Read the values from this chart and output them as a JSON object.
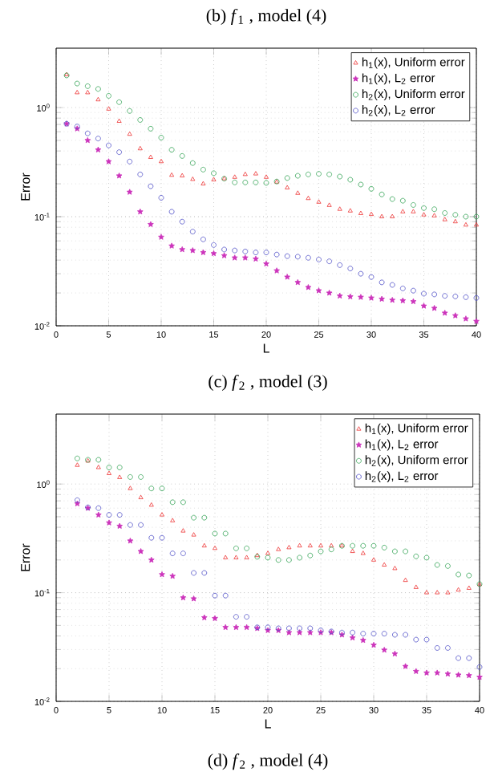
{
  "chart_data": [
    {
      "type": "scatter",
      "title": "(b)  *f*$_{1}$ , model (4)",
      "xlabel": "L",
      "ylabel": "Error",
      "x": [
        1,
        2,
        3,
        4,
        5,
        6,
        7,
        8,
        9,
        10,
        11,
        12,
        13,
        14,
        15,
        16,
        17,
        18,
        19,
        20,
        21,
        22,
        23,
        24,
        25,
        26,
        27,
        28,
        29,
        30,
        31,
        32,
        33,
        34,
        35,
        36,
        37,
        38,
        39,
        40
      ],
      "series": [
        {
          "name": "h$_{1}$(x), Uniform error",
          "color": "#ee3333",
          "marker": "triangle",
          "values": [
            2.0,
            1.37,
            1.37,
            1.18,
            0.97,
            0.75,
            0.57,
            0.42,
            0.35,
            0.32,
            0.24,
            0.237,
            0.22,
            0.2,
            0.218,
            0.223,
            0.23,
            0.244,
            0.247,
            0.23,
            0.208,
            0.184,
            0.164,
            0.147,
            0.136,
            0.127,
            0.117,
            0.113,
            0.107,
            0.105,
            0.1,
            0.1,
            0.111,
            0.111,
            0.104,
            0.102,
            0.094,
            0.09,
            0.084,
            0.084
          ]
        },
        {
          "name": "h$_{1}$(x), L$_{2}$ error",
          "color": "#cc33bb",
          "marker": "star",
          "values": [
            0.71,
            0.64,
            0.5,
            0.41,
            0.32,
            0.237,
            0.168,
            0.111,
            0.085,
            0.065,
            0.054,
            0.05,
            0.049,
            0.047,
            0.046,
            0.044,
            0.042,
            0.042,
            0.041,
            0.037,
            0.032,
            0.028,
            0.025,
            0.0225,
            0.021,
            0.02,
            0.0188,
            0.0185,
            0.0183,
            0.018,
            0.0176,
            0.0172,
            0.017,
            0.0167,
            0.0152,
            0.0145,
            0.0131,
            0.0124,
            0.0116,
            0.011
          ]
        },
        {
          "name": "h$_{2}$(x), Uniform error",
          "color": "#33a355",
          "marker": "circle",
          "values": [
            1.97,
            1.66,
            1.57,
            1.48,
            1.28,
            1.12,
            0.93,
            0.77,
            0.64,
            0.53,
            0.41,
            0.36,
            0.31,
            0.27,
            0.25,
            0.223,
            0.206,
            0.206,
            0.206,
            0.204,
            0.21,
            0.226,
            0.237,
            0.244,
            0.247,
            0.244,
            0.233,
            0.218,
            0.197,
            0.18,
            0.16,
            0.145,
            0.14,
            0.128,
            0.12,
            0.117,
            0.108,
            0.104,
            0.1,
            0.1
          ]
        },
        {
          "name": "h$_{2}$(x), L$_{2}$ error",
          "color": "#5050c8",
          "marker": "circle",
          "values": [
            0.71,
            0.67,
            0.58,
            0.52,
            0.45,
            0.39,
            0.32,
            0.244,
            0.19,
            0.149,
            0.111,
            0.09,
            0.073,
            0.062,
            0.055,
            0.05,
            0.049,
            0.048,
            0.047,
            0.047,
            0.045,
            0.0435,
            0.043,
            0.042,
            0.0405,
            0.039,
            0.036,
            0.0335,
            0.03,
            0.028,
            0.025,
            0.0237,
            0.022,
            0.021,
            0.0197,
            0.0194,
            0.0188,
            0.0186,
            0.0183,
            0.018
          ]
        }
      ],
      "xlim": [
        0,
        40
      ],
      "ylim": [
        0.01,
        3.5
      ],
      "xticks": [
        0,
        5,
        10,
        15,
        20,
        25,
        30,
        35,
        40
      ],
      "yticks": [
        {
          "value": 0.01,
          "label": "10$^{-2}$"
        },
        {
          "value": 0.1,
          "label": "10$^{-1}$"
        },
        {
          "value": 1,
          "label": "10$^{0}$"
        }
      ],
      "log": "y",
      "grid": true,
      "legend": "top right"
    },
    {
      "type": "scatter",
      "title": "(c)  *f*$_{2}$ , model (3)",
      "xlabel": "L",
      "ylabel": "Error",
      "x": [
        2,
        3,
        4,
        5,
        6,
        7,
        8,
        9,
        10,
        11,
        12,
        13,
        14,
        15,
        16,
        17,
        18,
        19,
        20,
        21,
        22,
        23,
        24,
        25,
        26,
        27,
        28,
        29,
        30,
        31,
        32,
        33,
        34,
        35,
        36,
        37,
        38,
        39,
        40
      ],
      "series": [
        {
          "name": "h$_{1}$(x), Uniform error",
          "color": "#ee3333",
          "marker": "triangle",
          "values": [
            1.49,
            1.63,
            1.42,
            1.25,
            1.15,
            0.91,
            0.75,
            0.64,
            0.52,
            0.46,
            0.37,
            0.34,
            0.27,
            0.256,
            0.21,
            0.21,
            0.21,
            0.22,
            0.23,
            0.25,
            0.26,
            0.27,
            0.27,
            0.27,
            0.27,
            0.27,
            0.24,
            0.23,
            0.2,
            0.18,
            0.167,
            0.13,
            0.112,
            0.1,
            0.1,
            0.1,
            0.106,
            0.11,
            0.119
          ]
        },
        {
          "name": "h$_{1}$(x), L$_{2}$ error",
          "color": "#cc33bb",
          "marker": "star",
          "values": [
            0.66,
            0.6,
            0.52,
            0.44,
            0.41,
            0.3,
            0.24,
            0.2,
            0.147,
            0.142,
            0.09,
            0.088,
            0.059,
            0.058,
            0.048,
            0.048,
            0.048,
            0.047,
            0.045,
            0.045,
            0.043,
            0.043,
            0.043,
            0.043,
            0.043,
            0.041,
            0.0385,
            0.0365,
            0.033,
            0.0297,
            0.0274,
            0.021,
            0.0189,
            0.0183,
            0.0183,
            0.0179,
            0.0175,
            0.0173,
            0.0167
          ]
        },
        {
          "name": "h$_{2}$(x), Uniform error",
          "color": "#33a355",
          "marker": "circle",
          "values": [
            1.72,
            1.67,
            1.67,
            1.42,
            1.42,
            1.16,
            1.16,
            0.91,
            0.91,
            0.68,
            0.68,
            0.49,
            0.49,
            0.35,
            0.35,
            0.256,
            0.256,
            0.214,
            0.21,
            0.2,
            0.2,
            0.21,
            0.22,
            0.24,
            0.25,
            0.27,
            0.27,
            0.27,
            0.27,
            0.26,
            0.24,
            0.24,
            0.216,
            0.21,
            0.18,
            0.176,
            0.147,
            0.144,
            0.12
          ]
        },
        {
          "name": "h$_{2}$(x), L$_{2}$ error",
          "color": "#5050c8",
          "marker": "circle",
          "values": [
            0.71,
            0.61,
            0.6,
            0.52,
            0.52,
            0.42,
            0.42,
            0.32,
            0.32,
            0.23,
            0.23,
            0.152,
            0.152,
            0.094,
            0.094,
            0.06,
            0.06,
            0.048,
            0.048,
            0.047,
            0.047,
            0.047,
            0.047,
            0.045,
            0.044,
            0.043,
            0.043,
            0.042,
            0.042,
            0.042,
            0.041,
            0.041,
            0.037,
            0.037,
            0.031,
            0.031,
            0.025,
            0.025,
            0.0207
          ]
        }
      ],
      "xlim": [
        0,
        40
      ],
      "ylim": [
        0.01,
        4.4
      ],
      "xticks": [
        0,
        5,
        10,
        15,
        20,
        25,
        30,
        35,
        40
      ],
      "yticks": [
        {
          "value": 0.01,
          "label": "10$^{-2}$"
        },
        {
          "value": 0.1,
          "label": "10$^{-1}$"
        },
        {
          "value": 1,
          "label": "10$^{0}$"
        }
      ],
      "log": "y",
      "grid": true,
      "legend": "top right",
      "annotations": [
        "(d)  *f*$_{2}$ , model (4)"
      ]
    }
  ]
}
